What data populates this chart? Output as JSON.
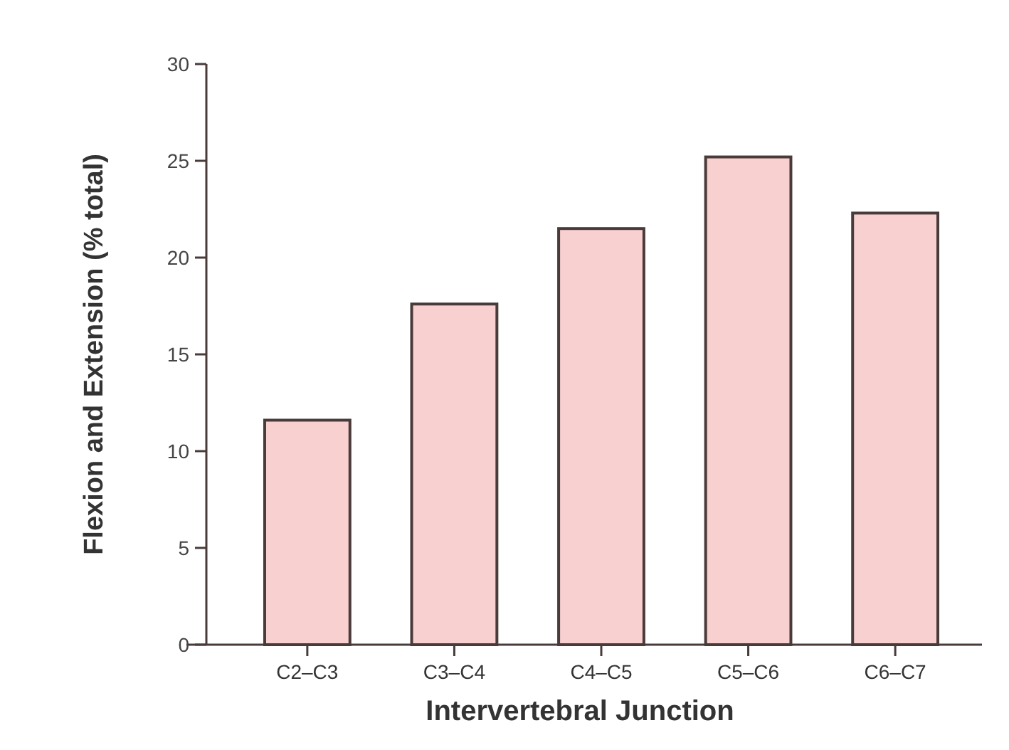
{
  "chart_data": {
    "type": "bar",
    "xlabel": "Intervertebral Junction",
    "ylabel": "Flexion and Extension (% total)",
    "categories": [
      "C2–C3",
      "C3–C4",
      "C4–C5",
      "C5–C6",
      "C6–C7"
    ],
    "values": [
      11.6,
      17.6,
      21.5,
      25.2,
      22.3
    ],
    "color": "#f8d0d0",
    "ylim": [
      0,
      30
    ],
    "yticks": [
      0,
      5,
      10,
      15,
      20,
      25,
      30
    ],
    "grid": false
  }
}
